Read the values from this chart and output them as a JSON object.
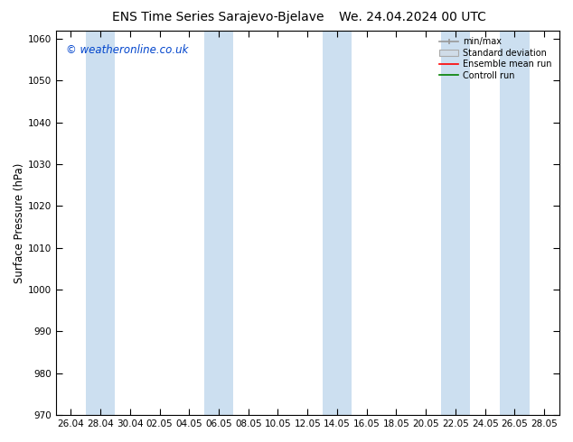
{
  "title": "ENS Time Series Sarajevo-Bjelave",
  "title2": "We. 24.04.2024 00 UTC",
  "ylabel": "Surface Pressure (hPa)",
  "ylim": [
    970,
    1062
  ],
  "yticks": [
    970,
    980,
    990,
    1000,
    1010,
    1020,
    1030,
    1040,
    1050,
    1060
  ],
  "xtick_labels": [
    "26.04",
    "28.04",
    "30.04",
    "02.05",
    "04.05",
    "06.05",
    "08.05",
    "10.05",
    "12.05",
    "14.05",
    "16.05",
    "18.05",
    "20.05",
    "22.05",
    "24.05",
    "26.05",
    "28.05"
  ],
  "watermark": "© weatheronline.co.uk",
  "legend_labels": [
    "min/max",
    "Standard deviation",
    "Ensemble mean run",
    "Controll run"
  ],
  "band_color": "#ccdff0",
  "band_alpha": 1.0,
  "bg_color": "#ffffff",
  "title_fontsize": 10,
  "tick_fontsize": 7.5,
  "ylabel_fontsize": 8.5,
  "shaded_indices": [
    1,
    5,
    9,
    13,
    15
  ]
}
